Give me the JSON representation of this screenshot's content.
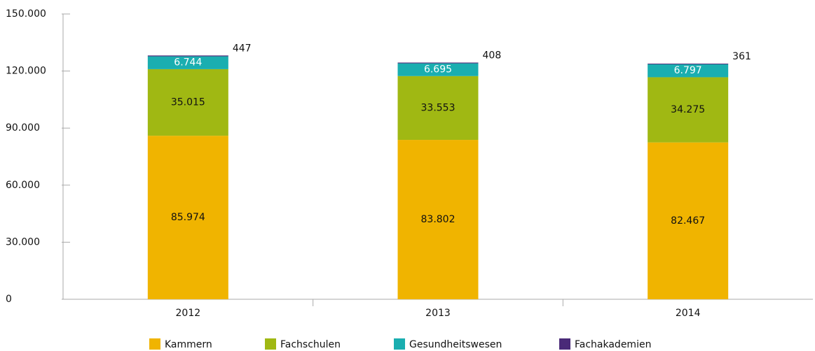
{
  "chart_data": {
    "type": "stacked-bar",
    "categories": [
      "2012",
      "2013",
      "2014"
    ],
    "series": [
      {
        "name": "Kammern",
        "color": "#f0b400",
        "values": [
          85974,
          83802,
          82467
        ],
        "value_labels": [
          "85.974",
          "83.802",
          "82.467"
        ]
      },
      {
        "name": "Fachschulen",
        "color": "#a0b813",
        "values": [
          35015,
          33553,
          34275
        ],
        "value_labels": [
          "35.015",
          "33.553",
          "34.275"
        ]
      },
      {
        "name": "Gesundheitswesen",
        "color": "#1aaeb0",
        "values": [
          6744,
          6695,
          6797
        ],
        "value_labels": [
          "6.744",
          "6.695",
          "6.797"
        ]
      },
      {
        "name": "Fachakademien",
        "color": "#4a2a78",
        "values": [
          447,
          408,
          361
        ]
      }
    ],
    "ylim": [
      0,
      150000
    ],
    "yticks": [
      0,
      {
        "value": 30000,
        "label": "30.000"
      },
      {
        "value": 60000,
        "label": "60.000"
      },
      {
        "value": 90000,
        "label": "90.000"
      },
      {
        "value": 120000,
        "label": "120.000"
      },
      {
        "value": 150000,
        "label": "150.000"
      }
    ],
    "legend": "bottom"
  }
}
